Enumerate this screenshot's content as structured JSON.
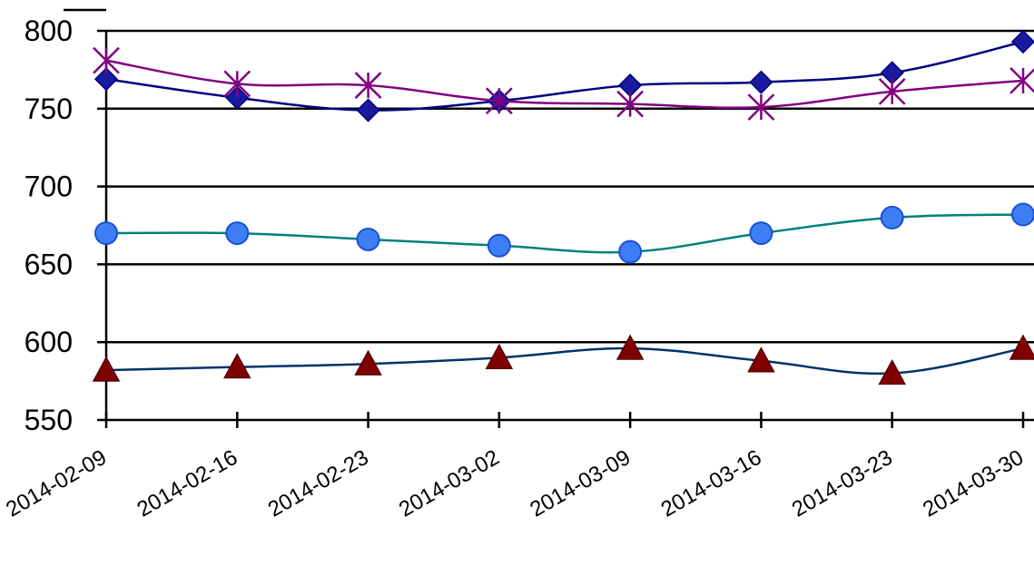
{
  "chart_data": {
    "type": "line",
    "title": "",
    "xlabel": "",
    "ylabel": "",
    "x": [
      "2014-02-09",
      "2014-02-16",
      "2014-02-23",
      "2014-03-02",
      "2014-03-09",
      "2014-03-16",
      "2014-03-23",
      "2014-03-30"
    ],
    "ylim": [
      550,
      800
    ],
    "yticks": [
      550,
      600,
      650,
      700,
      750,
      800
    ],
    "grid": "horizontal",
    "legend": "none",
    "series": [
      {
        "values": [
          769,
          757,
          749,
          755,
          765,
          767,
          773,
          793
        ],
        "line_color": "#000080",
        "marker": "diamond",
        "marker_color": "#1a1a9e",
        "marker_edge": "#000080"
      },
      {
        "values": [
          781,
          766,
          765,
          755,
          753,
          751,
          761,
          768
        ],
        "line_color": "#800080",
        "marker": "asterisk",
        "marker_color": "#800080",
        "marker_edge": "#800080"
      },
      {
        "values": [
          670,
          670,
          666,
          662,
          658,
          670,
          680,
          682
        ],
        "line_color": "#008080",
        "marker": "circle",
        "marker_color": "#3d7ef5",
        "marker_edge": "#1a4fd6"
      },
      {
        "values": [
          582,
          584,
          586,
          590,
          596,
          588,
          580,
          596
        ],
        "line_color": "#003366",
        "marker": "triangle",
        "marker_color": "#800000",
        "marker_edge": "#5a0000"
      }
    ]
  }
}
